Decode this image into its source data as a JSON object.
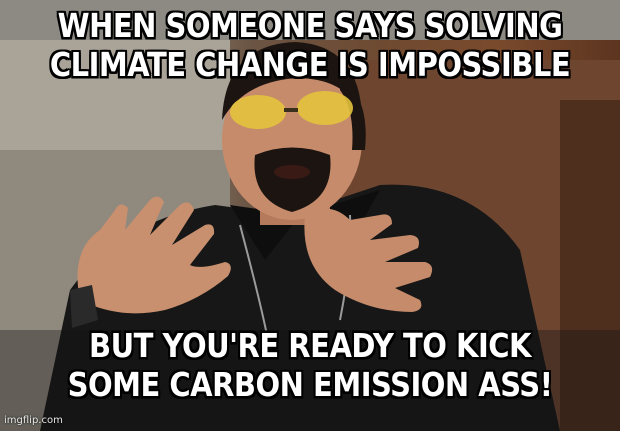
{
  "caption_top_line1": "WHEN SOMEONE SAYS SOLVING",
  "caption_top_line2": "CLIMATE CHANGE IS IMPOSSIBLE",
  "caption_bottom_line1": "BUT YOU'RE READY TO KICK",
  "caption_bottom_line2": "SOME CARBON EMISSION ASS!",
  "watermark": "imgflip.com",
  "colors": {
    "text": "#ffffff",
    "outline": "#000000",
    "wall": "#a7a196",
    "door": "#6f4a31",
    "shirt": "#1a1a1a",
    "skin": "#c58a6a",
    "glasses": "#e8c640"
  }
}
